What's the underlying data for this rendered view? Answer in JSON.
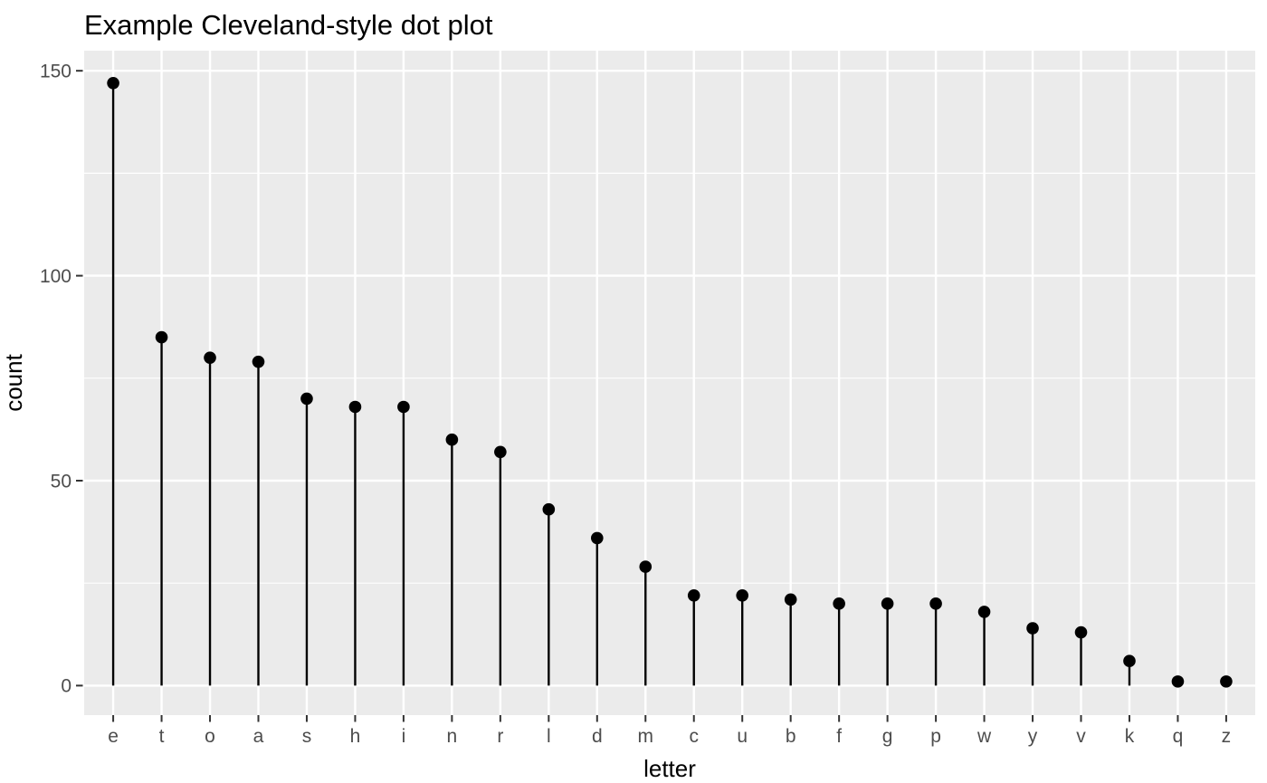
{
  "chart_data": {
    "type": "lollipop",
    "title": "Example Cleveland-style dot plot",
    "xlabel": "letter",
    "ylabel": "count",
    "categories": [
      "e",
      "t",
      "o",
      "a",
      "s",
      "h",
      "i",
      "n",
      "r",
      "l",
      "d",
      "m",
      "c",
      "u",
      "b",
      "f",
      "g",
      "p",
      "w",
      "y",
      "v",
      "k",
      "q",
      "z"
    ],
    "values": [
      147,
      85,
      80,
      79,
      70,
      68,
      68,
      60,
      57,
      43,
      36,
      29,
      22,
      22,
      21,
      20,
      20,
      20,
      18,
      14,
      13,
      6,
      1,
      1
    ],
    "y_major_ticks": [
      0,
      50,
      100,
      150
    ],
    "y_minor_ticks": [
      25,
      75,
      125
    ],
    "ylim": [
      -7.2,
      154.9
    ],
    "grid": "horizontal major + minor, vertical major per category",
    "legend": "none",
    "colors": {
      "page_background": "#FFFFFF",
      "panel_background": "#EBEBEB",
      "gridline": "#FFFFFF",
      "stem": "#000000",
      "point": "#000000",
      "tick_mark": "#333333",
      "tick_text": "#4D4D4D",
      "title_text": "#000000"
    }
  }
}
